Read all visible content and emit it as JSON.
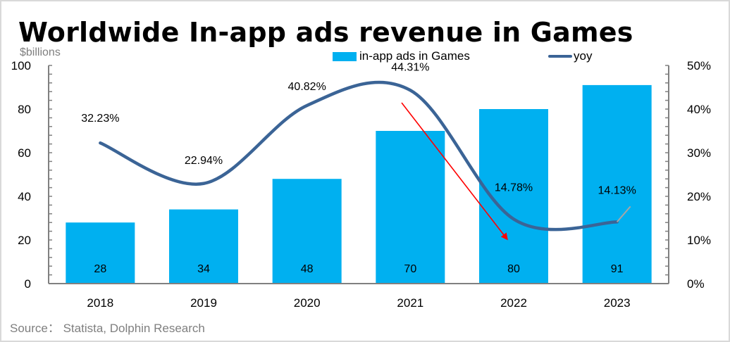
{
  "title": "Worldwide In-app ads revenue in Games",
  "unit_label": "$billions",
  "source": "Source： Statista, Dolphin Research",
  "legend": {
    "bar_label": "in-app ads in Games",
    "line_label": "yoy"
  },
  "colors": {
    "bar": "#00b0f0",
    "line": "#3b6496",
    "arrow": "#ff0000",
    "axis": "#808080"
  },
  "chart_data": {
    "type": "bar",
    "title": "Worldwide In-app ads revenue in Games",
    "xlabel": "",
    "ylabel": "$billions",
    "y2label": "",
    "categories": [
      "2018",
      "2019",
      "2020",
      "2021",
      "2022",
      "2023"
    ],
    "series": [
      {
        "name": "in-app ads in Games",
        "type": "bar",
        "axis": "left",
        "values": [
          28,
          34,
          48,
          70,
          80,
          91
        ],
        "labels": [
          "28",
          "34",
          "48",
          "70",
          "80",
          "91"
        ]
      },
      {
        "name": "yoy",
        "type": "line",
        "axis": "right",
        "smooth": true,
        "values": [
          32.23,
          22.94,
          40.82,
          44.31,
          14.78,
          14.13
        ],
        "labels": [
          "32.23%",
          "22.94%",
          "40.82%",
          "44.31%",
          "14.78%",
          "14.13%"
        ]
      }
    ],
    "ylim": [
      0,
      100
    ],
    "yticks": [
      0,
      20,
      40,
      60,
      80,
      100
    ],
    "y2lim": [
      0,
      50
    ],
    "y2ticks": [
      "0%",
      "10%",
      "20%",
      "30%",
      "40%",
      "50%"
    ],
    "legend_position": "top-right",
    "grid": false,
    "annotations": [
      {
        "type": "arrow",
        "color": "red",
        "description": "downward arrow from 2021 peak toward 2022"
      }
    ]
  }
}
